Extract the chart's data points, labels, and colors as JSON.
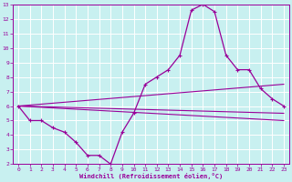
{
  "title": "",
  "xlabel": "Windchill (Refroidissement éolien,°C)",
  "background_color": "#c8f0f0",
  "grid_color": "#c8f0f0",
  "line_color": "#990099",
  "xlim": [
    -0.5,
    23.5
  ],
  "ylim": [
    2,
    13
  ],
  "xticks": [
    0,
    1,
    2,
    3,
    4,
    5,
    6,
    7,
    8,
    9,
    10,
    11,
    12,
    13,
    14,
    15,
    16,
    17,
    18,
    19,
    20,
    21,
    22,
    23
  ],
  "yticks": [
    2,
    3,
    4,
    5,
    6,
    7,
    8,
    9,
    10,
    11,
    12,
    13
  ],
  "line1_x": [
    0,
    1,
    2,
    3,
    4,
    5,
    6,
    7,
    8,
    9,
    10,
    11,
    12,
    13,
    14,
    15,
    16,
    17,
    18,
    19,
    20,
    21,
    22,
    23
  ],
  "line1_y": [
    6.0,
    5.0,
    5.0,
    4.5,
    4.2,
    3.5,
    2.6,
    2.6,
    2.0,
    4.2,
    5.5,
    7.5,
    8.0,
    8.5,
    9.5,
    12.6,
    13.0,
    12.5,
    9.5,
    8.5,
    8.5,
    7.2,
    6.5,
    6.0
  ],
  "line2_x": [
    0,
    23
  ],
  "line2_y": [
    6.0,
    5.5
  ],
  "line3_x": [
    0,
    23
  ],
  "line3_y": [
    6.0,
    5.0
  ],
  "line4_x": [
    0,
    23
  ],
  "line4_y": [
    6.0,
    7.5
  ]
}
